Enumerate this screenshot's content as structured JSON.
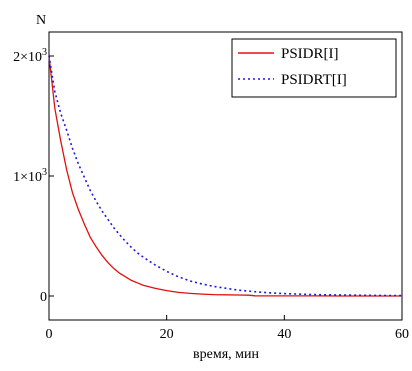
{
  "chart_data": {
    "type": "line",
    "title": "",
    "xlabel": "время, мин",
    "ylabel": "N",
    "xlim": [
      0,
      60
    ],
    "ylim": [
      -200,
      2200
    ],
    "xticks": [
      0,
      20,
      40,
      60
    ],
    "xtick_labels": [
      "0",
      "20",
      "40",
      "60"
    ],
    "yticks": [
      0,
      1000,
      2000
    ],
    "ytick_labels": [
      {
        "value": 0,
        "base": "0",
        "exp": ""
      },
      {
        "value": 1000,
        "base": "1×10",
        "exp": "3"
      },
      {
        "value": 2000,
        "base": "2×10",
        "exp": "3"
      }
    ],
    "grid": false,
    "legend_position": "top-right",
    "series": [
      {
        "name": "PSIDR[I]",
        "color": "#e01010",
        "style": "solid",
        "x": [
          0,
          1,
          2,
          3,
          4,
          5,
          6,
          7,
          8,
          9,
          10,
          11,
          12,
          13,
          14,
          15,
          16,
          18,
          20,
          22,
          24,
          26,
          28,
          30,
          32,
          34,
          35,
          36,
          40,
          45,
          50,
          55,
          60
        ],
        "y": [
          2000,
          1560,
          1290,
          1050,
          860,
          720,
          600,
          490,
          410,
          340,
          280,
          230,
          190,
          160,
          130,
          110,
          90,
          65,
          45,
          30,
          22,
          16,
          12,
          10,
          8,
          7,
          2,
          1,
          1,
          1,
          0,
          0,
          0
        ]
      },
      {
        "name": "PSIDRT[I]",
        "color": "#1a1ae0",
        "style": "dotted",
        "x": [
          0,
          1,
          2,
          3,
          4,
          5,
          6,
          7,
          8,
          9,
          10,
          11,
          12,
          13,
          14,
          15,
          16,
          18,
          20,
          22,
          24,
          26,
          28,
          30,
          32,
          34,
          36,
          38,
          40,
          45,
          50,
          55,
          60
        ],
        "y": [
          2000,
          1700,
          1520,
          1380,
          1230,
          1100,
          990,
          880,
          790,
          710,
          640,
          570,
          510,
          455,
          405,
          360,
          325,
          260,
          205,
          160,
          125,
          100,
          80,
          65,
          50,
          40,
          32,
          25,
          20,
          12,
          8,
          5,
          3
        ]
      }
    ]
  }
}
